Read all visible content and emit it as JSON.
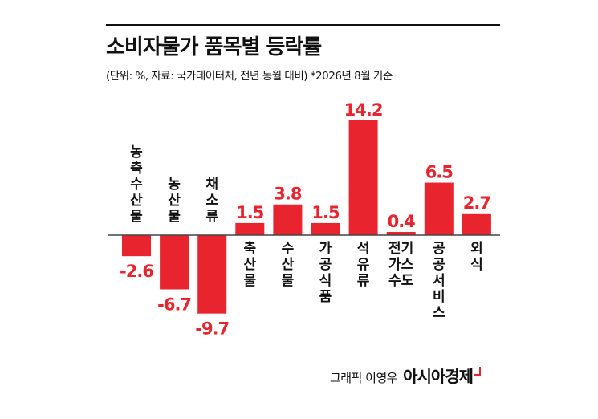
{
  "title": "소비자물가 품목별 등락률",
  "subtitle": "(단위: %, 자료: 국가데이터처, 전년 동월 대비) *2026년 8월 기준",
  "footer": {
    "credit": "그래픽 이영우",
    "brand": "아시아경제"
  },
  "colors": {
    "bar": "#e8252e",
    "axis": "#444444",
    "text": "#111111"
  },
  "chart_data": {
    "type": "bar",
    "title": "소비자물가 품목별 등락률",
    "subtitle": "(단위: %, 자료: 국가데이터처, 전년 동월 대비) *2026년 8월 기준",
    "categories": [
      "농축수산물",
      "농산물",
      "채소류",
      "축산물",
      "수산물",
      "가공식품",
      "석유류",
      "전기가스수도",
      "공공서비스",
      "외식"
    ],
    "category_lines": [
      [
        "농",
        "축",
        "수",
        "산",
        "물"
      ],
      [
        "농",
        "산",
        "물"
      ],
      [
        "채",
        "소",
        "류"
      ],
      [
        "축",
        "산",
        "물"
      ],
      [
        "수",
        "산",
        "물"
      ],
      [
        "가",
        "공",
        "식",
        "품"
      ],
      [
        "석",
        "유",
        "류"
      ],
      [
        "전기",
        "가스",
        "수도"
      ],
      [
        "공",
        "공",
        "서",
        "비",
        "스"
      ],
      [
        "외",
        "식"
      ]
    ],
    "values": [
      -2.6,
      -6.7,
      -9.7,
      1.5,
      3.8,
      1.5,
      14.2,
      0.4,
      6.5,
      2.7
    ],
    "value_labels": [
      "-2.6",
      "-6.7",
      "-9.7",
      "1.5",
      "3.8",
      "1.5",
      "14.2",
      "0.4",
      "6.5",
      "2.7"
    ],
    "ylim": [
      -9.7,
      14.2
    ],
    "unit": "%",
    "xlabel": "",
    "ylabel": "",
    "grid": false,
    "legend": "none"
  }
}
